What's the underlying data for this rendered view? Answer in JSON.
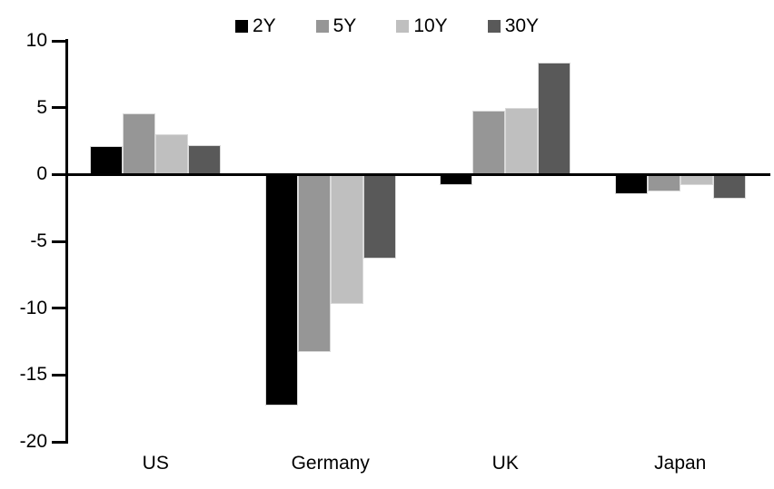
{
  "chart_data": {
    "type": "bar",
    "title": "",
    "categories": [
      "US",
      "Germany",
      "UK",
      "Japan"
    ],
    "series": [
      {
        "name": "2Y",
        "color": "#000000",
        "values": [
          2.1,
          -17.3,
          -0.8,
          -1.5
        ]
      },
      {
        "name": "5Y",
        "color": "#969696",
        "values": [
          4.6,
          -13.3,
          4.8,
          -1.3
        ]
      },
      {
        "name": "10Y",
        "color": "#bfbfbf",
        "values": [
          3.0,
          -9.7,
          5.0,
          -0.8
        ]
      },
      {
        "name": "30Y",
        "color": "#595959",
        "values": [
          2.2,
          -6.3,
          8.4,
          -1.8
        ]
      }
    ],
    "ylim": [
      -20,
      10
    ],
    "yticks": [
      10,
      5,
      0,
      -5,
      -10,
      -15,
      -20
    ],
    "xlabel": "",
    "ylabel": "",
    "legend_position": "top-center",
    "grid": false,
    "background_color": "#ffffff",
    "axis_color": "#000000",
    "bar_border_color": "#d9d9d9"
  }
}
